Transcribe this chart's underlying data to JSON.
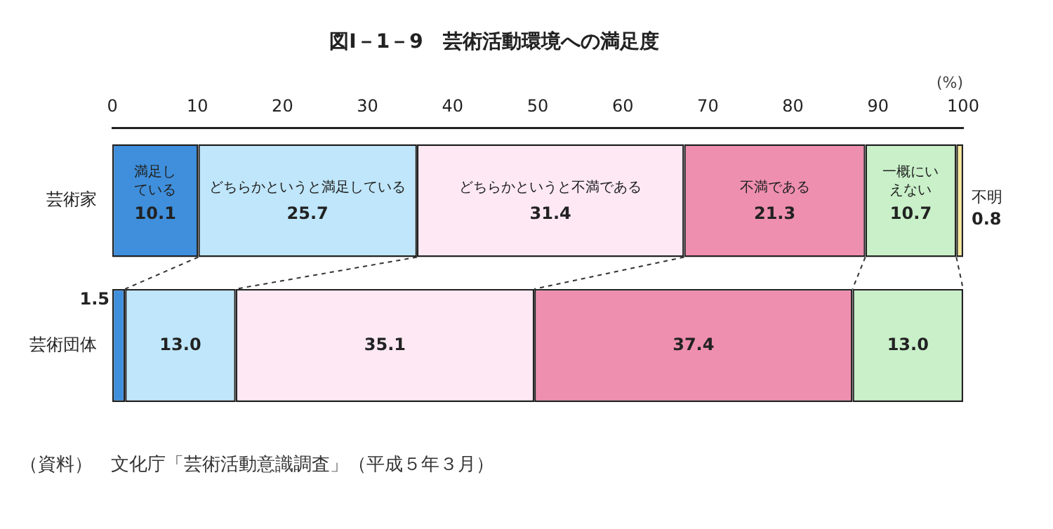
{
  "chart_data": {
    "type": "bar",
    "orientation": "horizontal",
    "stacked": true,
    "title": "図Ⅰ－1－9　芸術活動環境への満足度",
    "xlabel": "(%)",
    "categories": [
      "芸術家",
      "芸術団体"
    ],
    "xlim": [
      0,
      100
    ],
    "xticks": [
      0,
      10,
      20,
      30,
      40,
      50,
      60,
      70,
      80,
      90,
      100
    ],
    "grid": false,
    "legend": false,
    "series": [
      {
        "name": "満足している",
        "color": "#3f8fdc",
        "values": [
          10.1,
          1.5
        ],
        "value_labels": [
          "10.1",
          "1.5"
        ]
      },
      {
        "name": "どちらかというと満足している",
        "color": "#bfe6fa",
        "values": [
          25.7,
          13.0
        ],
        "value_labels": [
          "25.7",
          "13.0"
        ]
      },
      {
        "name": "どちらかというと不満である",
        "color": "#fde8f3",
        "values": [
          31.4,
          35.1
        ],
        "value_labels": [
          "31.4",
          "35.1"
        ]
      },
      {
        "name": "不満である",
        "color": "#ef8fb0",
        "values": [
          21.3,
          37.4
        ],
        "value_labels": [
          "21.3",
          "37.4"
        ]
      },
      {
        "name": "一概にいえない",
        "color": "#c9f0c9",
        "values": [
          10.7,
          13.0
        ],
        "value_labels": [
          "10.7",
          "13.0"
        ]
      },
      {
        "name": "不明",
        "color": "#f6e79a",
        "values": [
          0.8,
          null
        ],
        "value_labels": [
          "0.8",
          null
        ]
      }
    ],
    "annotations": [
      "（資料）　文化庁「芸術活動意識調査」（平成５年３月）"
    ]
  }
}
